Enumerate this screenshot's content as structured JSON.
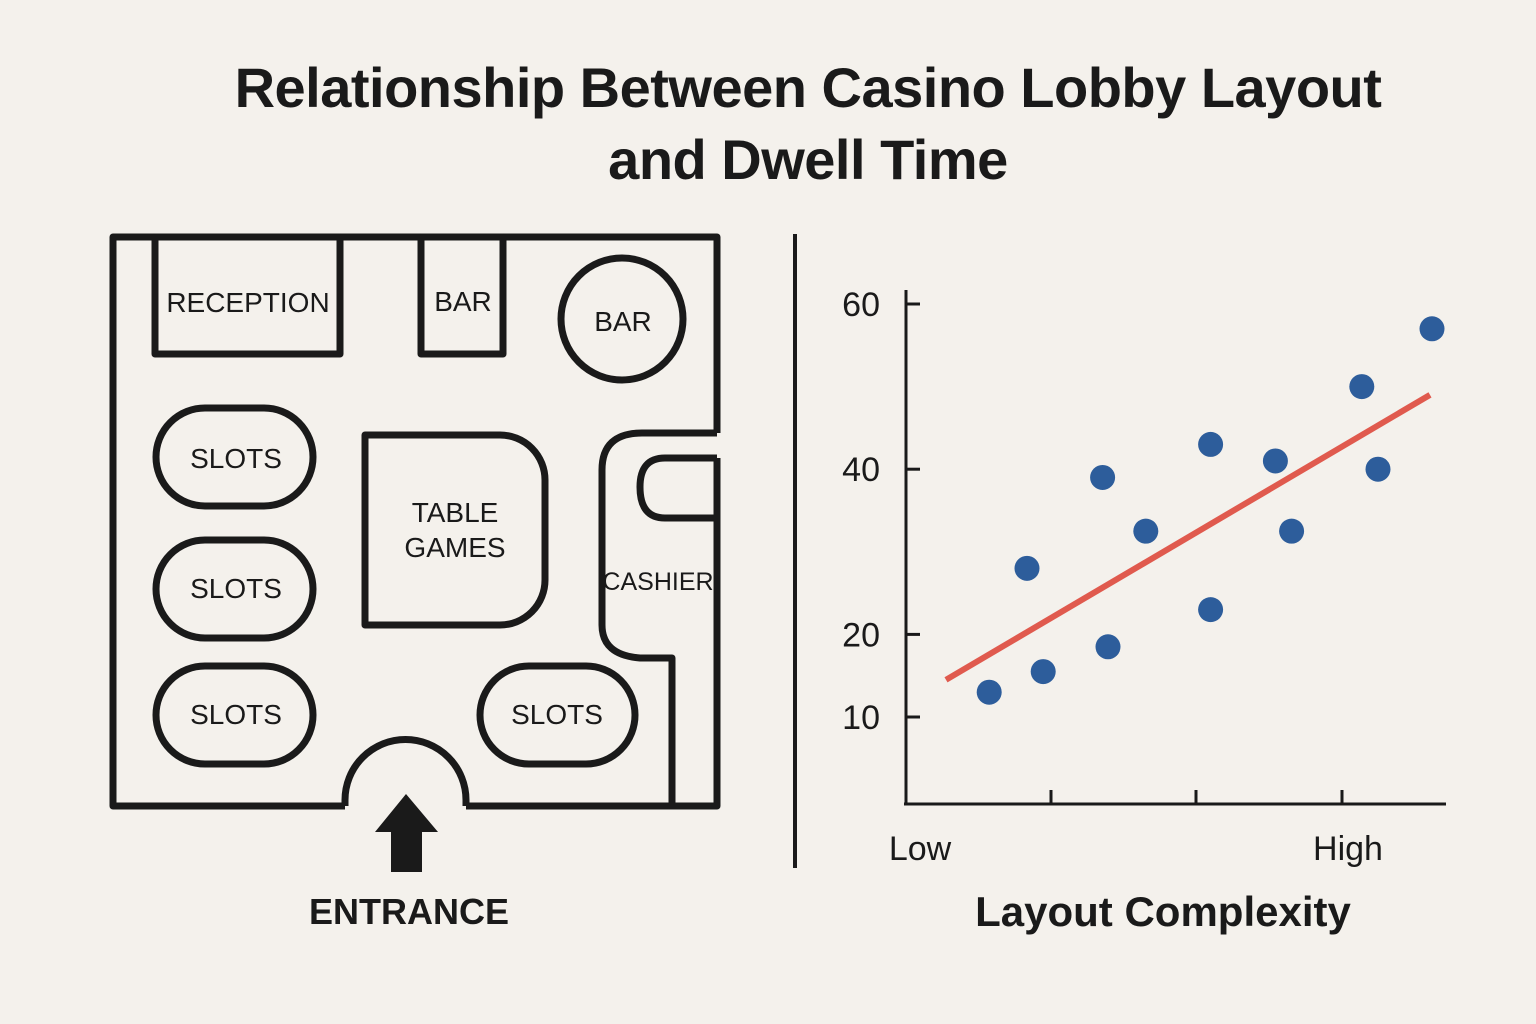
{
  "title": {
    "line1": "Relationship Between Casino Lobby Layout",
    "line2": "and Dwell Time"
  },
  "floorplan": {
    "reception": "RECEPTION",
    "bar_left": "BAR",
    "bar_round": "BAR",
    "slots_1": "SLOTS",
    "slots_2": "SLOTS",
    "slots_3": "SLOTS",
    "slots_4": "SLOTS",
    "table_games_line1": "TABLE",
    "table_games_line2": "GAMES",
    "cashier": "CASHIER",
    "entrance": "ENTRANCE"
  },
  "chart_data": {
    "type": "scatter",
    "xlabel": "Layout Complexity",
    "ylabel": "",
    "x_tick_labels": [
      "Low",
      "High"
    ],
    "y_ticks": [
      10,
      20,
      40,
      60
    ],
    "y_tick_labels": [
      "10",
      "20",
      "40",
      "60"
    ],
    "ylim": [
      3,
      65
    ],
    "points": [
      {
        "x": 0.08,
        "y": 13
      },
      {
        "x": 0.15,
        "y": 28
      },
      {
        "x": 0.18,
        "y": 15.5
      },
      {
        "x": 0.29,
        "y": 39
      },
      {
        "x": 0.3,
        "y": 18.5
      },
      {
        "x": 0.37,
        "y": 32.5
      },
      {
        "x": 0.49,
        "y": 23
      },
      {
        "x": 0.49,
        "y": 43
      },
      {
        "x": 0.61,
        "y": 41
      },
      {
        "x": 0.64,
        "y": 32.5
      },
      {
        "x": 0.77,
        "y": 50
      },
      {
        "x": 0.8,
        "y": 40
      },
      {
        "x": 0.9,
        "y": 57
      }
    ],
    "trend_line": {
      "x": [
        0.0,
        0.95
      ],
      "y": [
        14.5,
        49
      ]
    },
    "point_color": "#2d5d9b",
    "trend_color": "#e05a4e",
    "grid": false,
    "legend": "none"
  }
}
